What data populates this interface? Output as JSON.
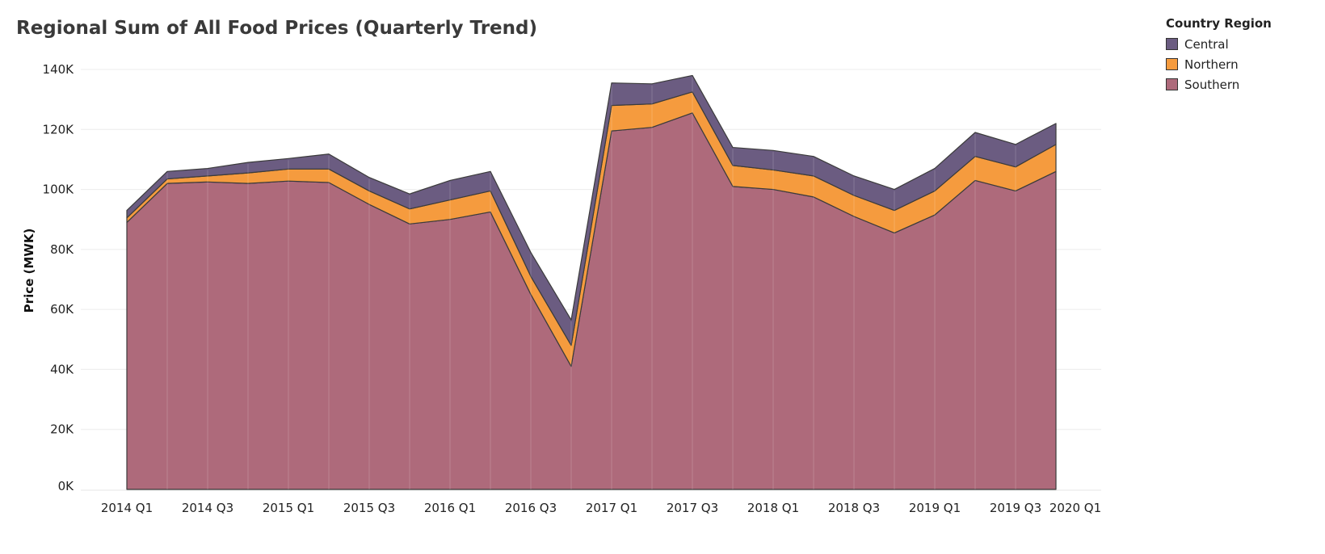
{
  "chart_data": {
    "type": "area",
    "stacked": true,
    "title": "Regional Sum of All Food Prices (Quarterly Trend)",
    "xlabel": "",
    "ylabel": "Price (MWK)",
    "ylim": [
      0,
      140000
    ],
    "y_ticks": [
      "0K",
      "20K",
      "40K",
      "60K",
      "80K",
      "100K",
      "120K",
      "140K"
    ],
    "y_tick_values": [
      0,
      20000,
      40000,
      60000,
      80000,
      100000,
      120000,
      140000
    ],
    "x": [
      "2014 Q1",
      "2014 Q2",
      "2014 Q3",
      "2014 Q4",
      "2015 Q1",
      "2015 Q2",
      "2015 Q3",
      "2015 Q4",
      "2016 Q1",
      "2016 Q2",
      "2016 Q3",
      "2016 Q4",
      "2017 Q1",
      "2017 Q2",
      "2017 Q3",
      "2017 Q4",
      "2018 Q1",
      "2018 Q2",
      "2018 Q3",
      "2018 Q4",
      "2019 Q1",
      "2019 Q2",
      "2019 Q3",
      "2019 Q4"
    ],
    "x_tick_labels": [
      "2014 Q1",
      "2014 Q3",
      "2015 Q1",
      "2015 Q3",
      "2016 Q1",
      "2016 Q3",
      "2017 Q1",
      "2017 Q3",
      "2018 Q1",
      "2018 Q3",
      "2019 Q1",
      "2019 Q3",
      "2020 Q1"
    ],
    "x_tick_indices": [
      0,
      2,
      4,
      6,
      8,
      10,
      12,
      14,
      16,
      18,
      20,
      22,
      24
    ],
    "series": [
      {
        "name": "Southern",
        "color": "#ae6a7b",
        "values": [
          89000,
          102000,
          102500,
          102000,
          102800,
          102300,
          95000,
          88500,
          90000,
          92500,
          65000,
          41000,
          119500,
          120700,
          125500,
          101000,
          100000,
          97500,
          91000,
          85500,
          91500,
          103000,
          99500,
          106000
        ]
      },
      {
        "name": "Northern",
        "color": "#f59b3e",
        "values": [
          1500,
          1500,
          2000,
          3500,
          4000,
          4500,
          4500,
          5000,
          6500,
          7000,
          6000,
          7000,
          8500,
          7800,
          7000,
          7000,
          6500,
          7000,
          7000,
          7500,
          8000,
          8000,
          8000,
          9000
        ]
      },
      {
        "name": "Central",
        "color": "#6b5c81",
        "values": [
          2500,
          2500,
          2500,
          3500,
          3500,
          5000,
          4500,
          5000,
          6500,
          6500,
          8000,
          8500,
          7500,
          6700,
          5500,
          6000,
          6500,
          6500,
          6500,
          7000,
          7500,
          8000,
          7500,
          7000
        ]
      }
    ],
    "legend": {
      "title": "Country Region",
      "position": "top-right",
      "items": [
        "Central",
        "Northern",
        "Southern"
      ]
    },
    "grid": true
  }
}
